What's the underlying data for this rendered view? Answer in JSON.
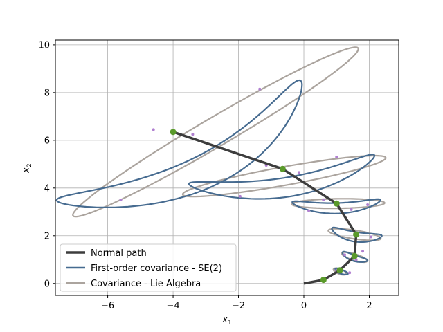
{
  "chart_data": {
    "type": "line",
    "title": "",
    "xlabel": "x",
    "xlabel_sub": "1",
    "ylabel": "x",
    "ylabel_sub": "2",
    "xlim": [
      -7.6,
      2.9
    ],
    "ylim": [
      -0.5,
      10.2
    ],
    "xticks": [
      -6,
      -4,
      -2,
      0,
      2
    ],
    "xtick_labels": [
      "−6",
      "−4",
      "−2",
      "0",
      "2"
    ],
    "yticks": [
      0,
      2,
      4,
      6,
      8,
      10
    ],
    "ytick_labels": [
      "0",
      "2",
      "4",
      "6",
      "8",
      "10"
    ],
    "grid": true,
    "legend_position": "lower-left",
    "colors": {
      "normal_path": "#3d3d3d",
      "first_order": "#466b90",
      "lie_algebra": "#aba49e",
      "waypoints": "#5a9a2a",
      "samples": "#b07fd0"
    },
    "series": [
      {
        "name": "Normal path",
        "x": [
          0.0,
          0.6,
          1.1,
          1.55,
          1.6,
          1.0,
          -0.65,
          -4.0
        ],
        "y": [
          0.0,
          0.15,
          0.55,
          1.15,
          2.05,
          3.35,
          4.8,
          6.35
        ]
      },
      {
        "name": "First-order covariance - SE(2)",
        "ellipses": [
          {
            "cx": 1.15,
            "cy": 0.5,
            "a": 0.22,
            "b": 0.08,
            "angle": -30,
            "bend": 0.02
          },
          {
            "cx": 1.55,
            "cy": 1.1,
            "a": 0.42,
            "b": 0.12,
            "angle": -25,
            "bend": 0.08
          },
          {
            "cx": 1.6,
            "cy": 2.05,
            "a": 0.78,
            "b": 0.2,
            "angle": -12,
            "bend": 0.2
          },
          {
            "cx": 1.0,
            "cy": 3.3,
            "a": 1.35,
            "b": 0.22,
            "angle": 2,
            "bend": 0.3
          },
          {
            "cx": -0.6,
            "cy": 4.4,
            "a": 2.9,
            "b": 0.4,
            "angle": 12,
            "bend": 0.75
          },
          {
            "cx": -3.4,
            "cy": 5.35,
            "a": 4.5,
            "b": 0.65,
            "angle": 34,
            "bend": 1.5
          }
        ]
      },
      {
        "name": "Covariance - Lie Algebra",
        "ellipses": [
          {
            "cx": 1.1,
            "cy": 0.5,
            "a": 0.22,
            "b": 0.1,
            "angle": -30
          },
          {
            "cx": 1.55,
            "cy": 1.1,
            "a": 0.42,
            "b": 0.13,
            "angle": -24
          },
          {
            "cx": 1.55,
            "cy": 2.05,
            "a": 0.82,
            "b": 0.18,
            "angle": -12
          },
          {
            "cx": 1.05,
            "cy": 3.35,
            "a": 1.42,
            "b": 0.2,
            "angle": 1
          },
          {
            "cx": -0.6,
            "cy": 4.5,
            "a": 3.2,
            "b": 0.38,
            "angle": 14
          },
          {
            "cx": -2.7,
            "cy": 6.35,
            "a": 5.6,
            "b": 0.55,
            "angle": 39
          }
        ]
      }
    ],
    "waypoints": {
      "x": [
        0.6,
        1.1,
        1.55,
        1.6,
        1.0,
        -0.65,
        -4.0
      ],
      "y": [
        0.15,
        0.55,
        1.15,
        2.05,
        3.35,
        4.8,
        6.35
      ]
    },
    "samples": {
      "x": [
        1.0,
        1.4,
        1.8,
        1.25,
        1.6,
        2.05,
        0.15,
        0.6,
        1.45,
        1.95,
        -1.95,
        -1.15,
        -0.15,
        0.6,
        1.0,
        -5.6,
        -4.6,
        -3.4,
        -1.35
      ],
      "y": [
        0.55,
        0.45,
        1.35,
        1.2,
        1.0,
        1.95,
        3.05,
        3.5,
        3.1,
        3.3,
        3.65,
        4.95,
        4.65,
        3.5,
        5.3,
        3.5,
        6.45,
        6.25,
        8.15
      ]
    }
  }
}
